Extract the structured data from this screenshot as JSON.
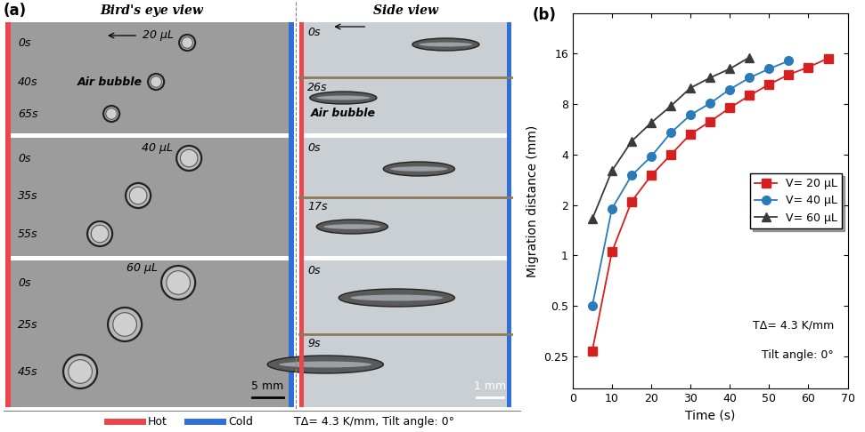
{
  "panel_a": {
    "label": "(a)",
    "bird_eye": {
      "title": "Bird's eye view",
      "rows": [
        {
          "volume": "20 μL",
          "times": [
            "0s",
            "40s",
            "65s"
          ],
          "note": "Air bubble"
        },
        {
          "volume": "40 μL",
          "times": [
            "0s",
            "35s",
            "55s"
          ]
        },
        {
          "volume": "60 μL",
          "times": [
            "0s",
            "25s",
            "45s"
          ]
        }
      ],
      "scale_bar": "5 mm"
    },
    "side_view": {
      "title": "Side view",
      "rows": [
        {
          "times": [
            "0s",
            "26s"
          ],
          "note": "Air bubble"
        },
        {
          "times": [
            "0s",
            "17s"
          ]
        },
        {
          "times": [
            "0s",
            "9s"
          ]
        }
      ],
      "scale_bar": "1 mm"
    },
    "legend": {
      "hot": {
        "label": "Hot",
        "color": "#e8474c"
      },
      "cold": {
        "label": "Cold",
        "color": "#2e6fd8"
      }
    },
    "condition": "TΔ= 4.3 K/mm, Tilt angle: 0°"
  },
  "chart_data": {
    "type": "line",
    "label": "(b)",
    "x_label": "Time (s)",
    "y_label": "Migration distance (mm)",
    "log": "y",
    "grid": false,
    "legend": "center right",
    "xlim": [
      0,
      70
    ],
    "xticks": [
      0,
      10,
      20,
      30,
      40,
      50,
      60,
      70
    ],
    "ylim": [
      0.16,
      28
    ],
    "yticks": [
      0.25,
      0.5,
      1,
      2,
      4,
      8,
      16
    ],
    "annotations": [
      "TΔ= 4.3 K/mm",
      "Tilt angle: 0°"
    ],
    "series": [
      {
        "name": "V= 20 μL",
        "color": "#d62020",
        "marker": "s",
        "line_style": "solid",
        "x": [
          5,
          10,
          15,
          20,
          25,
          30,
          35,
          40,
          45,
          50,
          55,
          60,
          65
        ],
        "values": [
          0.27,
          1.05,
          2.1,
          3.0,
          4.0,
          5.3,
          6.3,
          7.6,
          9.0,
          10.5,
          12.0,
          13.3,
          15.0
        ]
      },
      {
        "name": "V= 40 μL",
        "color": "#2b7bba",
        "marker": "o",
        "line_style": "solid",
        "x": [
          5,
          10,
          15,
          20,
          25,
          30,
          35,
          40,
          45,
          50,
          55
        ],
        "values": [
          0.5,
          1.9,
          3.0,
          3.9,
          5.4,
          6.9,
          8.1,
          9.8,
          11.5,
          13.0,
          14.5
        ]
      },
      {
        "name": "V= 60 μL",
        "color": "#3a3a3a",
        "marker": "^",
        "line_style": "solid",
        "x": [
          5,
          10,
          15,
          20,
          25,
          30,
          35,
          40,
          45
        ],
        "values": [
          1.65,
          3.2,
          4.8,
          6.2,
          7.8,
          10.0,
          11.5,
          13.0,
          15.2
        ]
      }
    ]
  }
}
